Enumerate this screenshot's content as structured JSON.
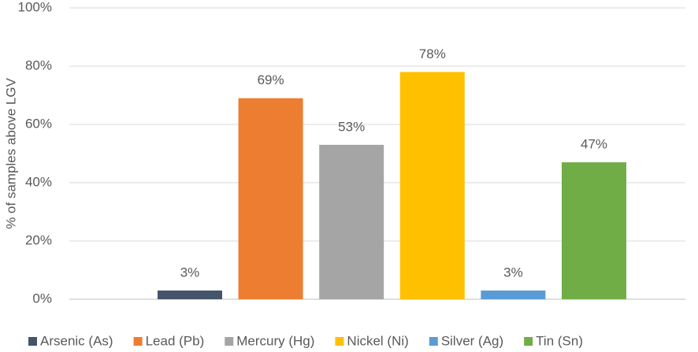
{
  "chart_data": {
    "type": "bar",
    "y_label": "% of samples above LGV",
    "categories": [
      null
    ],
    "series": [
      {
        "name": "Arsenic (As)",
        "color": "#44546a",
        "values": [
          3
        ],
        "value_labels": [
          "3%"
        ]
      },
      {
        "name": "Lead (Pb)",
        "color": "#ed7d31",
        "values": [
          69
        ],
        "value_labels": [
          "69%"
        ]
      },
      {
        "name": "Mercury (Hg)",
        "color": "#a5a5a5",
        "values": [
          53
        ],
        "value_labels": [
          "53%"
        ]
      },
      {
        "name": "Nickel (Ni)",
        "color": "#ffc000",
        "values": [
          78
        ],
        "value_labels": [
          "78%"
        ]
      },
      {
        "name": "Silver (Ag)",
        "color": "#5b9bd5",
        "values": [
          3
        ],
        "value_labels": [
          "3%"
        ]
      },
      {
        "name": "Tin (Sn)",
        "color": "#70ad47",
        "values": [
          47
        ],
        "value_labels": [
          "47%"
        ]
      }
    ],
    "ylim": [
      0,
      100
    ],
    "yticks": [
      {
        "value": 0,
        "label": "0%"
      },
      {
        "value": 20,
        "label": "20%"
      },
      {
        "value": 40,
        "label": "40%"
      },
      {
        "value": 60,
        "label": "60%"
      },
      {
        "value": 80,
        "label": "80%"
      },
      {
        "value": 100,
        "label": "100%"
      }
    ],
    "grid": true,
    "legend": "bottom"
  }
}
